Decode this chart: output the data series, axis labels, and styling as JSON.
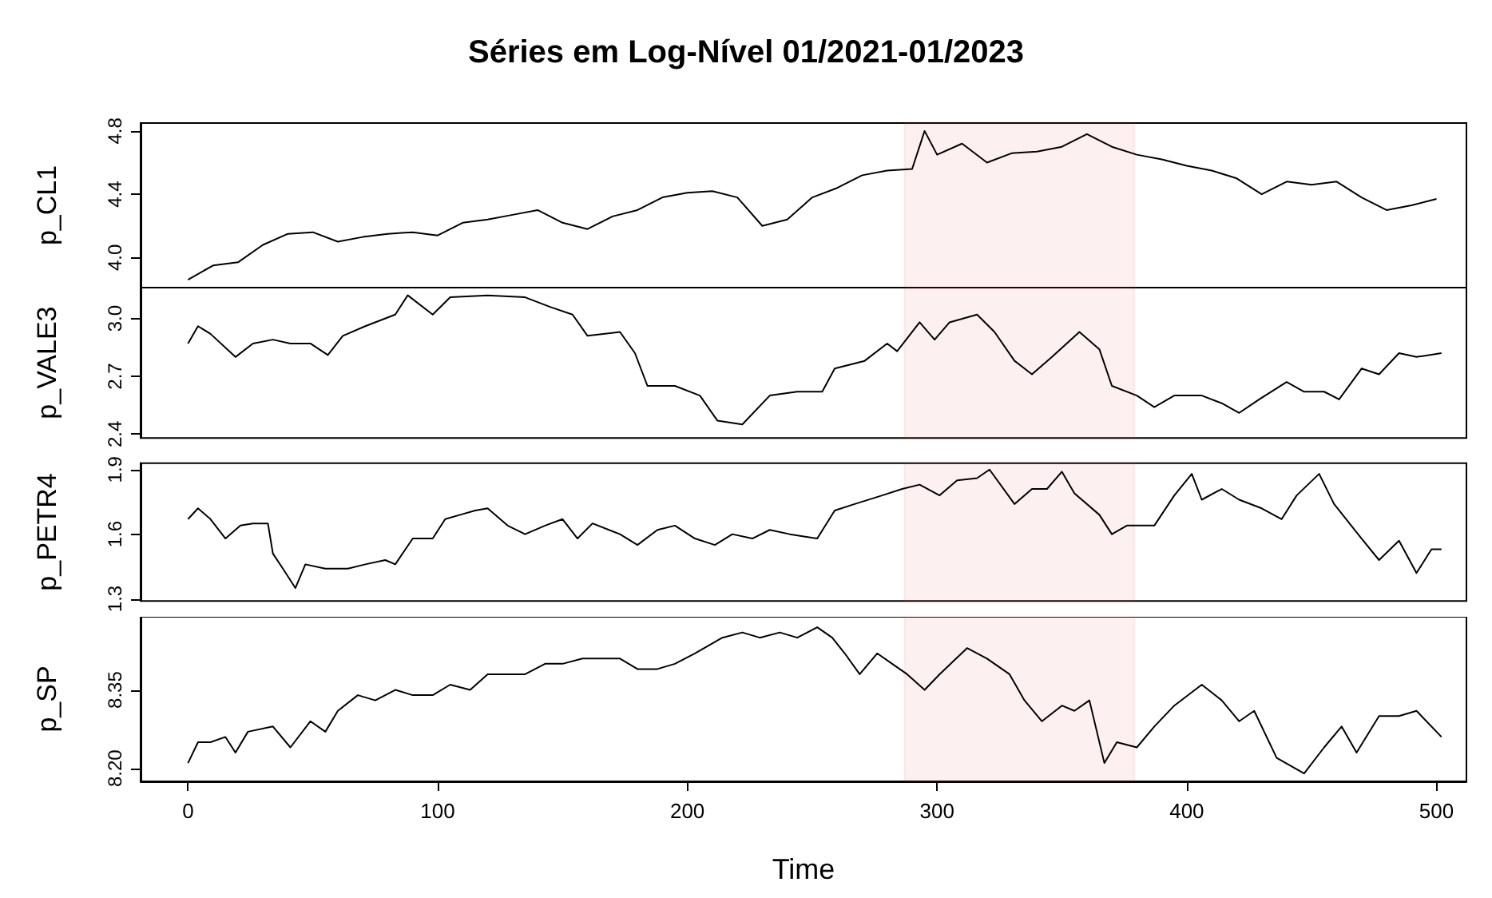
{
  "chart_data": [
    {
      "type": "line",
      "title": "Séries em Log-Nível 01/2021-01/2023",
      "ylabel": "p_CL1",
      "tick_labels": "y",
      "marker": "none",
      "grid": false,
      "x": [
        0,
        10,
        20,
        30,
        40,
        50,
        60,
        70,
        80,
        90,
        100,
        110,
        120,
        130,
        140,
        150,
        160,
        170,
        180,
        190,
        200,
        210,
        220,
        230,
        240,
        250,
        260,
        270,
        280,
        290,
        295,
        300,
        310,
        320,
        330,
        340,
        350,
        360,
        370,
        380,
        390,
        400,
        410,
        420,
        430,
        440,
        450,
        460,
        470,
        480,
        490,
        500
      ],
      "series": [
        {
          "color": "#000000",
          "values": [
            3.86,
            3.95,
            3.97,
            4.08,
            4.15,
            4.16,
            4.1,
            4.13,
            4.15,
            4.16,
            4.14,
            4.22,
            4.24,
            4.27,
            4.3,
            4.22,
            4.18,
            4.26,
            4.3,
            4.38,
            4.41,
            4.42,
            4.38,
            4.2,
            4.24,
            4.38,
            4.44,
            4.52,
            4.55,
            4.56,
            4.8,
            4.65,
            4.72,
            4.6,
            4.66,
            4.67,
            4.7,
            4.78,
            4.7,
            4.65,
            4.62,
            4.58,
            4.55,
            4.5,
            4.4,
            4.48,
            4.46,
            4.48,
            4.38,
            4.3,
            4.33,
            4.37
          ]
        }
      ],
      "xlim": [
        -19,
        512
      ],
      "xticks": [
        0,
        100,
        200,
        300,
        400,
        500
      ],
      "ylim": [
        3.81,
        4.85
      ],
      "yticks": [
        {
          "value": 4,
          "label": "4.0"
        },
        4.4,
        4.8
      ],
      "bands": [
        {
          "axis": "x",
          "from": 287,
          "to": 379,
          "color": "#e03030"
        }
      ]
    },
    {
      "type": "line",
      "ylabel": "p_VALE3",
      "tick_labels": "y",
      "marker": "none",
      "grid": false,
      "x": [
        0,
        4,
        9,
        19,
        26,
        34,
        41,
        49,
        56,
        62,
        71,
        83,
        88,
        98,
        105,
        120,
        135,
        145,
        154,
        160,
        173,
        179,
        184,
        195,
        205,
        212,
        222,
        233,
        244,
        254,
        259,
        271,
        280,
        284,
        293,
        299,
        305,
        316,
        323,
        331,
        338,
        346,
        357,
        365,
        370,
        380,
        387,
        395,
        406,
        414,
        421,
        429,
        440,
        447,
        455,
        461,
        470,
        477,
        485,
        492,
        502
      ],
      "series": [
        {
          "color": "#000000",
          "values": [
            2.87,
            2.96,
            2.92,
            2.8,
            2.87,
            2.89,
            2.87,
            2.87,
            2.81,
            2.91,
            2.96,
            3.02,
            3.12,
            3.02,
            3.11,
            3.12,
            3.11,
            3.06,
            3.02,
            2.91,
            2.93,
            2.82,
            2.65,
            2.65,
            2.6,
            2.47,
            2.45,
            2.6,
            2.62,
            2.62,
            2.74,
            2.78,
            2.87,
            2.83,
            2.98,
            2.89,
            2.98,
            3.02,
            2.93,
            2.78,
            2.71,
            2.8,
            2.93,
            2.84,
            2.65,
            2.6,
            2.54,
            2.6,
            2.6,
            2.56,
            2.51,
            2.58,
            2.67,
            2.62,
            2.62,
            2.58,
            2.74,
            2.71,
            2.82,
            2.8,
            2.82
          ]
        }
      ],
      "xlim": [
        -19,
        512
      ],
      "xticks": [
        0,
        100,
        200,
        300,
        400,
        500
      ],
      "ylim": [
        2.38,
        3.16
      ],
      "yticks": [
        2.4,
        2.7,
        {
          "value": 3,
          "label": "3.0"
        }
      ],
      "bands": [
        {
          "axis": "x",
          "from": 287,
          "to": 379,
          "color": "#e03030"
        }
      ]
    },
    {
      "type": "line",
      "ylabel": "p_PETR4",
      "tick_labels": "y",
      "marker": "none",
      "grid": false,
      "x": [
        0,
        4,
        9,
        15,
        21,
        26,
        32,
        34,
        38,
        43,
        47,
        55,
        64,
        71,
        79,
        83,
        90,
        98,
        103,
        109,
        115,
        120,
        128,
        135,
        143,
        150,
        156,
        162,
        173,
        180,
        188,
        195,
        203,
        211,
        218,
        226,
        233,
        241,
        252,
        259,
        267,
        278,
        286,
        293,
        301,
        308,
        316,
        321,
        331,
        338,
        344,
        350,
        355,
        365,
        370,
        376,
        387,
        395,
        402,
        406,
        414,
        421,
        430,
        438,
        444,
        453,
        459,
        470,
        477,
        485,
        492,
        498,
        502
      ],
      "series": [
        {
          "color": "#000000",
          "values": [
            1.67,
            1.72,
            1.67,
            1.58,
            1.64,
            1.65,
            1.65,
            1.51,
            1.44,
            1.35,
            1.46,
            1.44,
            1.44,
            1.46,
            1.48,
            1.46,
            1.58,
            1.58,
            1.67,
            1.69,
            1.71,
            1.72,
            1.64,
            1.6,
            1.64,
            1.67,
            1.58,
            1.65,
            1.6,
            1.55,
            1.62,
            1.64,
            1.58,
            1.55,
            1.6,
            1.58,
            1.62,
            1.6,
            1.58,
            1.71,
            1.74,
            1.78,
            1.81,
            1.83,
            1.78,
            1.85,
            1.86,
            1.9,
            1.74,
            1.81,
            1.81,
            1.89,
            1.79,
            1.69,
            1.6,
            1.64,
            1.64,
            1.78,
            1.88,
            1.76,
            1.81,
            1.76,
            1.72,
            1.67,
            1.78,
            1.88,
            1.74,
            1.58,
            1.48,
            1.57,
            1.42,
            1.53,
            1.53
          ]
        }
      ],
      "xlim": [
        -19,
        512
      ],
      "xticks": [
        0,
        100,
        200,
        300,
        400,
        500
      ],
      "ylim": [
        1.29,
        1.93
      ],
      "yticks": [
        1.3,
        1.6,
        1.9
      ],
      "bands": [
        {
          "axis": "x",
          "from": 287,
          "to": 379,
          "color": "#e03030"
        }
      ]
    },
    {
      "type": "line",
      "ylabel": "p_SP",
      "xlabel": "Time",
      "marker": "none",
      "grid": false,
      "x": [
        0,
        4,
        9,
        15,
        19,
        24,
        34,
        41,
        49,
        55,
        60,
        68,
        75,
        83,
        90,
        98,
        105,
        113,
        120,
        128,
        135,
        143,
        150,
        158,
        165,
        173,
        180,
        188,
        195,
        203,
        214,
        222,
        229,
        237,
        244,
        252,
        258,
        263,
        269,
        276,
        282,
        288,
        295,
        301,
        312,
        320,
        329,
        335,
        342,
        350,
        355,
        361,
        367,
        372,
        380,
        387,
        395,
        406,
        414,
        421,
        427,
        436,
        447,
        455,
        462,
        468,
        477,
        485,
        492,
        502
      ],
      "series": [
        {
          "color": "#000000",
          "values": [
            8.21,
            8.25,
            8.25,
            8.26,
            8.23,
            8.27,
            8.28,
            8.24,
            8.29,
            8.27,
            8.31,
            8.34,
            8.33,
            8.35,
            8.34,
            8.34,
            8.36,
            8.35,
            8.38,
            8.38,
            8.38,
            8.4,
            8.4,
            8.41,
            8.41,
            8.41,
            8.39,
            8.39,
            8.4,
            8.42,
            8.45,
            8.46,
            8.45,
            8.46,
            8.45,
            8.47,
            8.45,
            8.42,
            8.38,
            8.42,
            8.4,
            8.38,
            8.35,
            8.38,
            8.43,
            8.41,
            8.38,
            8.33,
            8.29,
            8.32,
            8.31,
            8.33,
            8.21,
            8.25,
            8.24,
            8.28,
            8.32,
            8.36,
            8.33,
            8.29,
            8.31,
            8.22,
            8.19,
            8.24,
            8.28,
            8.23,
            8.3,
            8.3,
            8.31,
            8.26
          ]
        }
      ],
      "xlim": [
        -19,
        512
      ],
      "xticks": [
        0,
        100,
        200,
        300,
        400,
        500
      ],
      "ylim": [
        8.175,
        8.49
      ],
      "yticks": [
        {
          "value": 8.2,
          "label": "8.20"
        },
        8.35
      ],
      "bands": [
        {
          "axis": "x",
          "from": 287,
          "to": 379,
          "color": "#e03030"
        }
      ]
    }
  ]
}
